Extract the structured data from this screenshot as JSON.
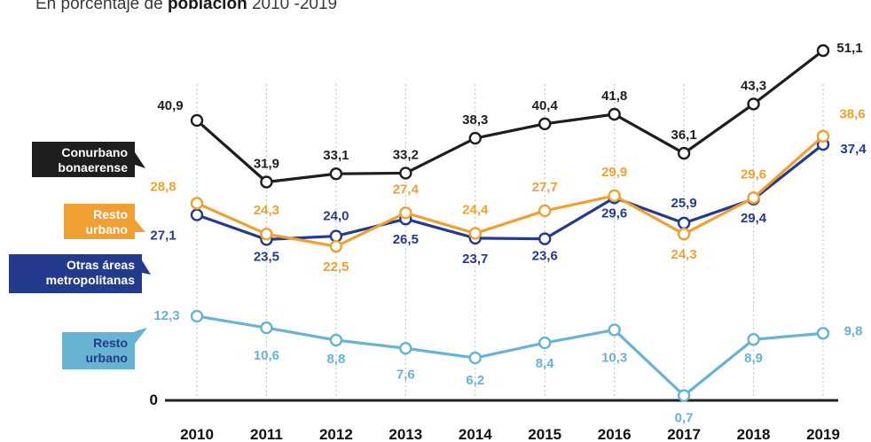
{
  "header": {
    "subtitle_pre": "En porcentaje de",
    "subtitle_bold": "población",
    "subtitle_post": "2010 -2019"
  },
  "chart_data": {
    "type": "line",
    "x": [
      "2010",
      "2011",
      "2012",
      "2013",
      "2014",
      "2015",
      "2016",
      "2017",
      "2018",
      "2019"
    ],
    "ylim": [
      0,
      55
    ],
    "zero_label": "0",
    "series": [
      {
        "id": "conurbano",
        "name_lines": [
          "Conurbano",
          "bonaerense"
        ],
        "color": "#1e1e1e",
        "values": [
          40.9,
          31.9,
          33.1,
          33.2,
          38.3,
          40.4,
          41.8,
          36.1,
          43.3,
          51.1
        ],
        "labels": [
          "40,9",
          "31,9",
          "33,1",
          "33,2",
          "38,3",
          "40,4",
          "41,8",
          "36,1",
          "43,3",
          "51,1"
        ]
      },
      {
        "id": "resto_urbano_naranja",
        "name_lines": [
          "Resto",
          "urbano"
        ],
        "color": "#f0a033",
        "values": [
          28.8,
          24.3,
          22.5,
          27.4,
          24.4,
          27.7,
          29.9,
          24.3,
          29.6,
          38.6
        ],
        "labels": [
          "28,8",
          "24,3",
          "22,5",
          "27,4",
          "24,4",
          "27,7",
          "29,9",
          "24,3",
          "29,6",
          "38,6"
        ]
      },
      {
        "id": "otras_areas",
        "name_lines": [
          "Otras áreas",
          "metropolitanas"
        ],
        "color": "#243a8c",
        "values": [
          27.1,
          23.5,
          24.0,
          26.5,
          23.7,
          23.6,
          29.6,
          25.9,
          29.4,
          37.4
        ],
        "labels": [
          "27,1",
          "23,5",
          "24,0",
          "26,5",
          "23,7",
          "23,6",
          "29,6",
          "25,9",
          "29,4",
          "37,4"
        ]
      },
      {
        "id": "resto_urbano_celeste",
        "name_lines": [
          "Resto",
          "urbano"
        ],
        "color": "#67b3d2",
        "values": [
          12.3,
          10.6,
          8.8,
          7.6,
          6.2,
          8.4,
          10.3,
          0.7,
          8.9,
          9.8
        ],
        "labels": [
          "12,3",
          "10,6",
          "8,8",
          "7,6",
          "6,2",
          "8,4",
          "10,3",
          "0,7",
          "8,9",
          "9,8"
        ]
      }
    ]
  }
}
